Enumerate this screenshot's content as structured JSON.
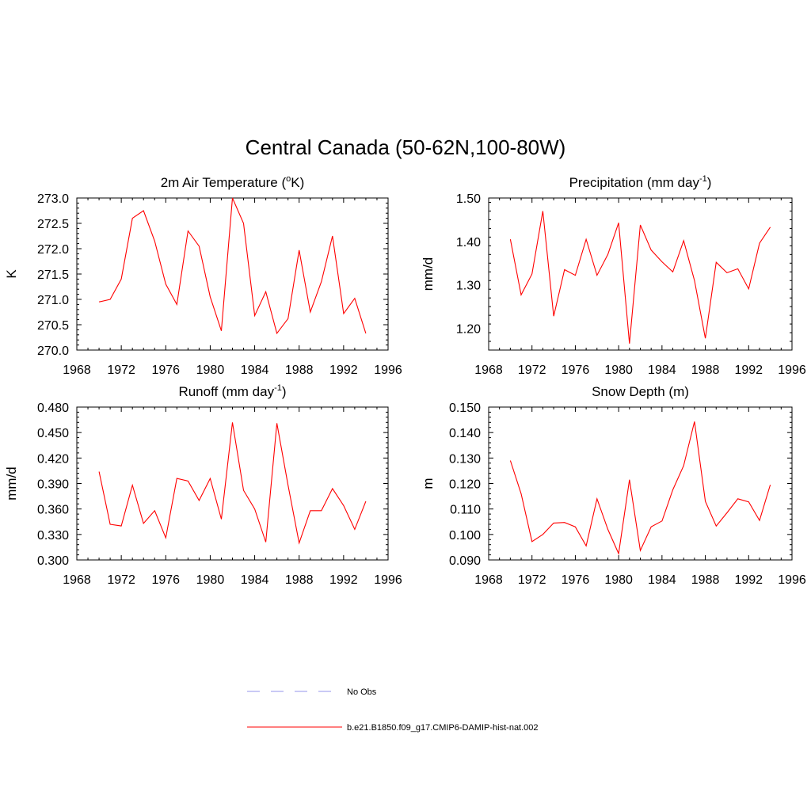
{
  "figure": {
    "title": "Central Canada (50-62N,100-80W)"
  },
  "legend": {
    "entries": [
      {
        "label": "No Obs",
        "style": "dashed",
        "color": "#a9a9ef"
      },
      {
        "label": "b.e21.B1850.f09_g17.CMIP6-DAMIP-hist-nat.002",
        "style": "solid",
        "color": "#ff0000"
      }
    ]
  },
  "chart_data": [
    {
      "type": "line",
      "title": "2m Air Temperature (",
      "title_sup": "o",
      "title_tail": "K)",
      "ylabel": "K",
      "xlim": [
        1968,
        1996
      ],
      "ylim": [
        270.0,
        273.0
      ],
      "xticks": [
        "1968",
        "1972",
        "1976",
        "1980",
        "1984",
        "1988",
        "1992",
        "1996"
      ],
      "yticks": [
        "270.0",
        "270.5",
        "271.0",
        "271.5",
        "272.0",
        "272.5",
        "273.0"
      ],
      "series": [
        {
          "color": "#ff0000",
          "x": [
            1970,
            1971,
            1972,
            1973,
            1974,
            1975,
            1976,
            1977,
            1978,
            1979,
            1980,
            1981,
            1982,
            1983,
            1984,
            1985,
            1986,
            1987,
            1988,
            1989,
            1990,
            1991,
            1992,
            1993,
            1994
          ],
          "values": [
            270.95,
            271.0,
            271.4,
            272.6,
            272.75,
            272.15,
            271.3,
            270.9,
            272.35,
            272.05,
            271.05,
            270.38,
            273.0,
            272.5,
            270.68,
            271.15,
            270.33,
            270.62,
            271.97,
            270.75,
            271.35,
            272.25,
            270.72,
            271.02,
            270.33
          ]
        }
      ]
    },
    {
      "type": "line",
      "title": "Precipitation (mm day",
      "title_sup": "-1",
      "title_tail": ")",
      "ylabel": "mm/d",
      "xlim": [
        1968,
        1996
      ],
      "ylim": [
        1.15,
        1.5
      ],
      "xticks": [
        "1968",
        "1972",
        "1976",
        "1980",
        "1984",
        "1988",
        "1992",
        "1996"
      ],
      "yticks": [
        "1.20",
        "1.30",
        "1.40",
        "1.50"
      ],
      "series": [
        {
          "color": "#ff0000",
          "x": [
            1970,
            1971,
            1972,
            1973,
            1974,
            1975,
            1976,
            1977,
            1978,
            1979,
            1980,
            1981,
            1982,
            1983,
            1984,
            1985,
            1986,
            1987,
            1988,
            1989,
            1990,
            1991,
            1992,
            1993,
            1994
          ],
          "values": [
            1.405,
            1.277,
            1.325,
            1.47,
            1.228,
            1.335,
            1.322,
            1.405,
            1.322,
            1.37,
            1.443,
            1.165,
            1.438,
            1.38,
            1.353,
            1.33,
            1.402,
            1.31,
            1.177,
            1.352,
            1.328,
            1.337,
            1.291,
            1.396,
            1.433
          ]
        }
      ]
    },
    {
      "type": "line",
      "title": "Runoff (mm day",
      "title_sup": "-1",
      "title_tail": ")",
      "ylabel": "mm/d",
      "xlim": [
        1968,
        1996
      ],
      "ylim": [
        0.3,
        0.48
      ],
      "xticks": [
        "1968",
        "1972",
        "1976",
        "1980",
        "1984",
        "1988",
        "1992",
        "1996"
      ],
      "yticks": [
        "0.300",
        "0.330",
        "0.360",
        "0.390",
        "0.420",
        "0.450",
        "0.480"
      ],
      "series": [
        {
          "color": "#ff0000",
          "x": [
            1970,
            1971,
            1972,
            1973,
            1974,
            1975,
            1976,
            1977,
            1978,
            1979,
            1980,
            1981,
            1982,
            1983,
            1984,
            1985,
            1986,
            1987,
            1988,
            1989,
            1990,
            1991,
            1992,
            1993,
            1994
          ],
          "values": [
            0.404,
            0.342,
            0.34,
            0.388,
            0.343,
            0.358,
            0.326,
            0.396,
            0.393,
            0.37,
            0.396,
            0.348,
            0.462,
            0.382,
            0.36,
            0.321,
            0.461,
            0.388,
            0.32,
            0.358,
            0.358,
            0.384,
            0.364,
            0.336,
            0.369
          ]
        }
      ]
    },
    {
      "type": "line",
      "title": "Snow Depth (m)",
      "title_sup": "",
      "title_tail": "",
      "ylabel": "m",
      "xlim": [
        1968,
        1996
      ],
      "ylim": [
        0.09,
        0.15
      ],
      "xticks": [
        "1968",
        "1972",
        "1976",
        "1980",
        "1984",
        "1988",
        "1992",
        "1996"
      ],
      "yticks": [
        "0.090",
        "0.100",
        "0.110",
        "0.120",
        "0.130",
        "0.140",
        "0.150"
      ],
      "series": [
        {
          "color": "#ff0000",
          "x": [
            1970,
            1971,
            1972,
            1973,
            1974,
            1975,
            1976,
            1977,
            1978,
            1979,
            1980,
            1981,
            1982,
            1983,
            1984,
            1985,
            1986,
            1987,
            1988,
            1989,
            1990,
            1991,
            1992,
            1993,
            1994
          ],
          "values": [
            0.129,
            0.116,
            0.0972,
            0.1,
            0.1045,
            0.1047,
            0.103,
            0.0955,
            0.114,
            0.102,
            0.0925,
            0.1215,
            0.0937,
            0.103,
            0.1053,
            0.1175,
            0.127,
            0.1443,
            0.113,
            0.1033,
            0.1085,
            0.114,
            0.1128,
            0.1055,
            0.1195
          ]
        }
      ]
    }
  ]
}
